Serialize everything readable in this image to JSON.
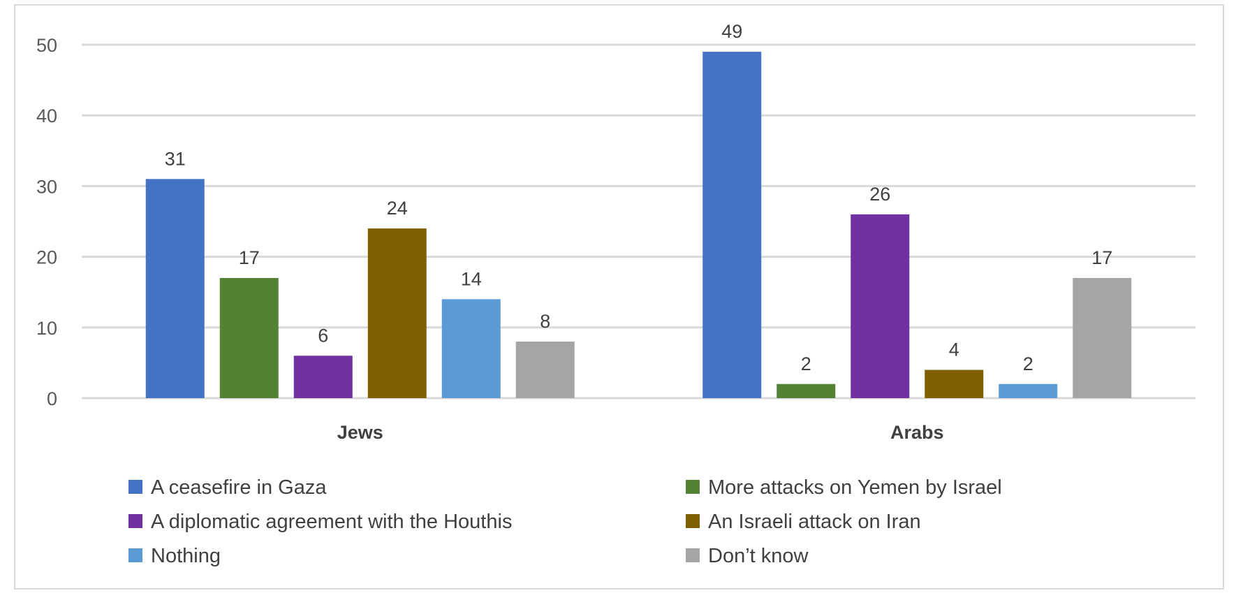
{
  "chart_data": {
    "type": "bar",
    "title": "",
    "xlabel": "",
    "ylabel": "",
    "categories": [
      "Jews",
      "Arabs"
    ],
    "series": [
      {
        "name": "A ceasefire in Gaza",
        "values": [
          31,
          49
        ],
        "color": "#4472C4"
      },
      {
        "name": "More attacks on Yemen by Israel",
        "values": [
          17,
          2
        ],
        "color": "#548235"
      },
      {
        "name": "A diplomatic agreement with the Houthis",
        "values": [
          6,
          26
        ],
        "color": "#7030A0"
      },
      {
        "name": "An Israeli attack on Iran",
        "values": [
          24,
          4
        ],
        "color": "#7F6000"
      },
      {
        "name": "Nothing",
        "values": [
          14,
          2
        ],
        "color": "#5B9BD5"
      },
      {
        "name": "Don’t know",
        "values": [
          8,
          17
        ],
        "color": "#A5A5A5"
      }
    ],
    "ylim": [
      0,
      50
    ],
    "yticks": [
      0,
      10,
      20,
      30,
      40,
      50
    ],
    "grid": true,
    "legend_position": "bottom",
    "data_labels": true
  }
}
